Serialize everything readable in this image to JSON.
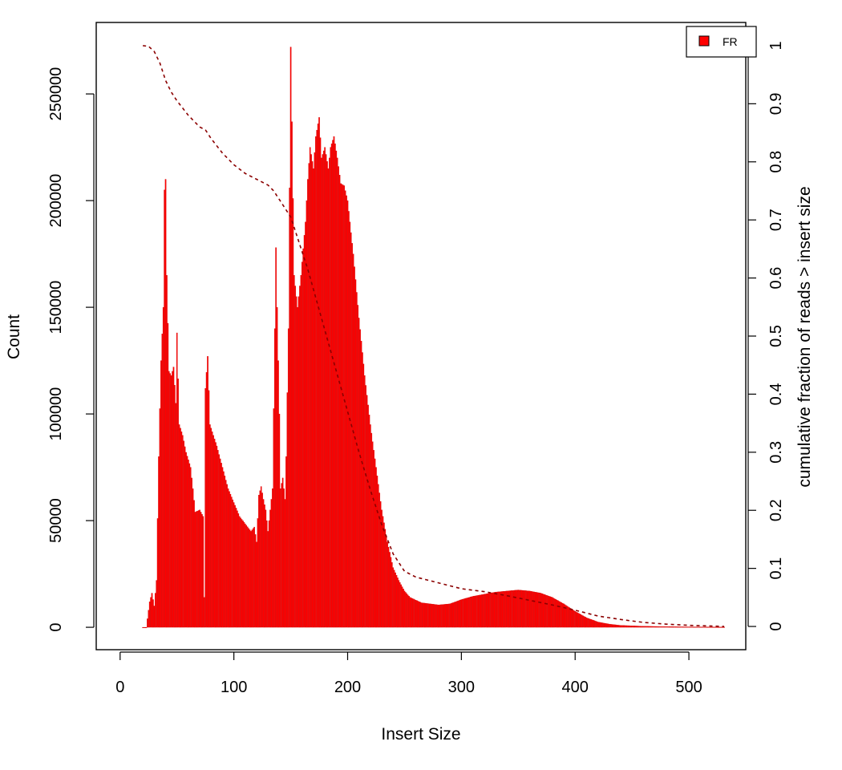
{
  "chart_data": {
    "type": "bar",
    "xlabel": "Insert Size",
    "ylabel": "Count",
    "y2label": "cumulative fraction of reads > insert size",
    "xlim": [
      -21,
      550
    ],
    "ylim": [
      -10500,
      283500
    ],
    "y2lim": [
      -0.04,
      1.04
    ],
    "xticks": [
      "0",
      "100",
      "200",
      "300",
      "400",
      "500"
    ],
    "yticks": [
      "0",
      "50000",
      "100000",
      "150000",
      "200000",
      "250000"
    ],
    "y2ticks": [
      "0",
      "0.1",
      "0.2",
      "0.3",
      "0.4",
      "0.5",
      "0.6",
      "0.7",
      "0.8",
      "0.9",
      "1"
    ],
    "legend": {
      "position": "top-right",
      "entries": [
        "FR"
      ]
    },
    "colors": {
      "bars": "#ff0000",
      "bar_edge": "#cc0000",
      "cumulative_line": "#8b0000"
    },
    "histogram_anchors": [
      [
        20,
        0
      ],
      [
        23,
        0
      ],
      [
        26,
        12000
      ],
      [
        28,
        16000
      ],
      [
        30,
        10000
      ],
      [
        32,
        22000
      ],
      [
        34,
        80000
      ],
      [
        36,
        125000
      ],
      [
        38,
        150000
      ],
      [
        39,
        205000
      ],
      [
        40,
        210000
      ],
      [
        41,
        165000
      ],
      [
        43,
        120000
      ],
      [
        45,
        118000
      ],
      [
        47,
        122000
      ],
      [
        49,
        105000
      ],
      [
        50,
        138000
      ],
      [
        52,
        95000
      ],
      [
        55,
        90000
      ],
      [
        58,
        82000
      ],
      [
        62,
        75000
      ],
      [
        64,
        65000
      ],
      [
        66,
        54000
      ],
      [
        70,
        55000
      ],
      [
        73,
        52000
      ],
      [
        74,
        14000
      ],
      [
        75,
        112000
      ],
      [
        77,
        127000
      ],
      [
        79,
        95000
      ],
      [
        85,
        85000
      ],
      [
        95,
        65000
      ],
      [
        105,
        52000
      ],
      [
        115,
        45000
      ],
      [
        118,
        47000
      ],
      [
        120,
        40000
      ],
      [
        122,
        62000
      ],
      [
        124,
        66000
      ],
      [
        126,
        60000
      ],
      [
        128,
        55000
      ],
      [
        130,
        45000
      ],
      [
        132,
        55000
      ],
      [
        134,
        65000
      ],
      [
        136,
        140000
      ],
      [
        137,
        178000
      ],
      [
        138,
        150000
      ],
      [
        140,
        100000
      ],
      [
        141,
        65000
      ],
      [
        143,
        70000
      ],
      [
        145,
        60000
      ],
      [
        146,
        80000
      ],
      [
        148,
        140000
      ],
      [
        150,
        272000
      ],
      [
        151,
        237000
      ],
      [
        153,
        165000
      ],
      [
        156,
        150000
      ],
      [
        159,
        165000
      ],
      [
        163,
        190000
      ],
      [
        165,
        210000
      ],
      [
        167,
        225000
      ],
      [
        170,
        215000
      ],
      [
        172,
        230000
      ],
      [
        175,
        239000
      ],
      [
        177,
        220000
      ],
      [
        180,
        225000
      ],
      [
        183,
        215000
      ],
      [
        185,
        225000
      ],
      [
        188,
        230000
      ],
      [
        191,
        220000
      ],
      [
        194,
        208000
      ],
      [
        197,
        207000
      ],
      [
        200,
        200000
      ],
      [
        205,
        175000
      ],
      [
        210,
        145000
      ],
      [
        215,
        118000
      ],
      [
        220,
        95000
      ],
      [
        225,
        75000
      ],
      [
        230,
        55000
      ],
      [
        235,
        40000
      ],
      [
        240,
        28000
      ],
      [
        245,
        22000
      ],
      [
        250,
        17000
      ],
      [
        255,
        14000
      ],
      [
        265,
        11500
      ],
      [
        280,
        10500
      ],
      [
        290,
        11000
      ],
      [
        300,
        13000
      ],
      [
        310,
        14500
      ],
      [
        320,
        15500
      ],
      [
        330,
        16500
      ],
      [
        340,
        17000
      ],
      [
        350,
        17500
      ],
      [
        360,
        17000
      ],
      [
        370,
        16000
      ],
      [
        380,
        14000
      ],
      [
        390,
        11000
      ],
      [
        400,
        7500
      ],
      [
        410,
        4500
      ],
      [
        420,
        2500
      ],
      [
        430,
        1500
      ],
      [
        440,
        900
      ],
      [
        460,
        500
      ],
      [
        480,
        300
      ],
      [
        500,
        200
      ],
      [
        531,
        150
      ]
    ],
    "cumulative_fraction": [
      [
        20,
        1.0
      ],
      [
        25,
        0.999
      ],
      [
        30,
        0.99
      ],
      [
        35,
        0.97
      ],
      [
        40,
        0.94
      ],
      [
        45,
        0.92
      ],
      [
        50,
        0.905
      ],
      [
        60,
        0.88
      ],
      [
        70,
        0.86
      ],
      [
        75,
        0.855
      ],
      [
        80,
        0.84
      ],
      [
        90,
        0.815
      ],
      [
        100,
        0.795
      ],
      [
        110,
        0.78
      ],
      [
        120,
        0.77
      ],
      [
        130,
        0.76
      ],
      [
        135,
        0.75
      ],
      [
        140,
        0.735
      ],
      [
        145,
        0.72
      ],
      [
        150,
        0.705
      ],
      [
        155,
        0.675
      ],
      [
        160,
        0.645
      ],
      [
        165,
        0.615
      ],
      [
        170,
        0.58
      ],
      [
        175,
        0.545
      ],
      [
        180,
        0.51
      ],
      [
        185,
        0.475
      ],
      [
        190,
        0.44
      ],
      [
        195,
        0.405
      ],
      [
        200,
        0.37
      ],
      [
        210,
        0.3
      ],
      [
        220,
        0.235
      ],
      [
        230,
        0.175
      ],
      [
        240,
        0.125
      ],
      [
        250,
        0.095
      ],
      [
        260,
        0.085
      ],
      [
        270,
        0.08
      ],
      [
        280,
        0.075
      ],
      [
        290,
        0.07
      ],
      [
        300,
        0.065
      ],
      [
        320,
        0.06
      ],
      [
        340,
        0.053
      ],
      [
        360,
        0.045
      ],
      [
        380,
        0.037
      ],
      [
        400,
        0.028
      ],
      [
        420,
        0.018
      ],
      [
        440,
        0.012
      ],
      [
        460,
        0.007
      ],
      [
        480,
        0.004
      ],
      [
        500,
        0.002
      ],
      [
        531,
        0.0
      ]
    ]
  }
}
